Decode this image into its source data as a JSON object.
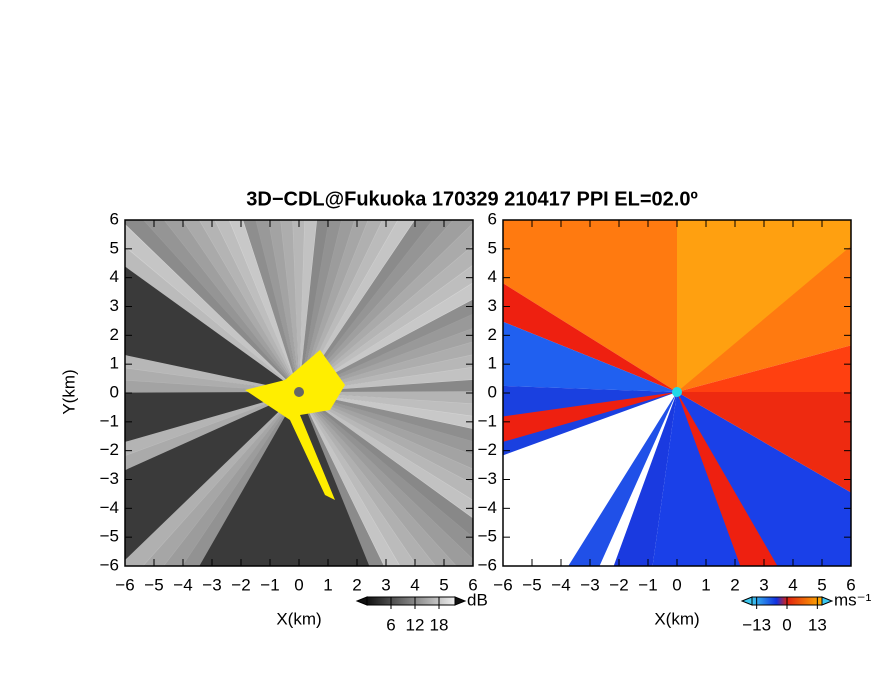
{
  "title": "3D−CDL@Fukuoka 170329 210417 PPI EL=02.0º",
  "chart_data": [
    {
      "type": "ppi",
      "xlabel": "X(km)",
      "ylabel": "Y(km)",
      "xlim": [
        -6,
        6
      ],
      "ylim": [
        -6,
        6
      ],
      "xticks": [
        {
          "value": -6,
          "label": "−6"
        },
        {
          "value": -5,
          "label": "−5"
        },
        {
          "value": -4,
          "label": "−4"
        },
        {
          "value": -3,
          "label": "−3"
        },
        {
          "value": -2,
          "label": "−2"
        },
        {
          "value": -1,
          "label": "−1"
        },
        0,
        1,
        2,
        3,
        4,
        5,
        6
      ],
      "yticks": [
        {
          "value": -6,
          "label": "−6"
        },
        {
          "value": -5,
          "label": "−5"
        },
        {
          "value": -4,
          "label": "−4"
        },
        {
          "value": -3,
          "label": "−3"
        },
        {
          "value": -2,
          "label": "−2"
        },
        {
          "value": -1,
          "label": "−1"
        },
        0,
        1,
        2,
        3,
        4,
        5,
        6
      ],
      "colorbar": {
        "unit": "dB",
        "clim": [
          0,
          22
        ],
        "ticks": [
          6,
          12,
          18
        ]
      }
    },
    {
      "type": "ppi",
      "xlabel": "X(km)",
      "xlim": [
        -6,
        6
      ],
      "ylim": [
        -6,
        6
      ],
      "xticks": [
        {
          "value": -6,
          "label": "−6"
        },
        {
          "value": -5,
          "label": "−5"
        },
        {
          "value": -4,
          "label": "−4"
        },
        {
          "value": -3,
          "label": "−3"
        },
        {
          "value": -2,
          "label": "−2"
        },
        {
          "value": -1,
          "label": "−1"
        },
        0,
        1,
        2,
        3,
        4,
        5,
        6
      ],
      "yticks": [
        {
          "value": -6,
          "label": "−6"
        },
        {
          "value": -5,
          "label": "−5"
        },
        {
          "value": -4,
          "label": "−4"
        },
        {
          "value": -3,
          "label": "−3"
        },
        {
          "value": -2,
          "label": "−2"
        },
        {
          "value": -1,
          "label": "−1"
        },
        0,
        1,
        2,
        3,
        4,
        5,
        6
      ],
      "colorbar": {
        "unit": "ms⁻¹",
        "clim": [
          -15,
          15
        ],
        "ticks": [
          {
            "value": -13,
            "label": "−13"
          },
          0,
          13
        ]
      }
    }
  ]
}
